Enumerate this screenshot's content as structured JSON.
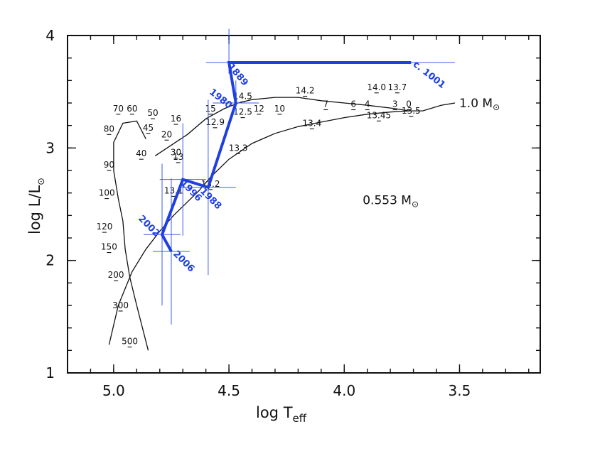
{
  "chart_data": {
    "type": "line",
    "xlabel": "log T",
    "xlabel_sub": "eff",
    "ylabel": "log L/L",
    "ylabel_sub": "⊙",
    "xlim": [
      5.2,
      3.15
    ],
    "ylim": [
      1.0,
      4.0
    ],
    "x_reversed": true,
    "x_ticks": [
      5.0,
      4.5,
      4.0,
      3.5
    ],
    "x_tick_labels": [
      "5.0",
      "4.5",
      "4.0",
      "3.5"
    ],
    "y_ticks": [
      1,
      2,
      3,
      4
    ],
    "y_tick_labels": [
      "1",
      "2",
      "3",
      "4"
    ],
    "grid": false,
    "series": [
      {
        "name": "1.0 M⊙",
        "name_sub": "⊙",
        "name_main": "1.0 M",
        "kind": "evolutionary-track",
        "points": [
          [
            3.52,
            3.4
          ],
          [
            3.58,
            3.38
          ],
          [
            3.66,
            3.33
          ],
          [
            3.72,
            3.33
          ],
          [
            3.78,
            3.35
          ],
          [
            3.9,
            3.38
          ],
          [
            4.0,
            3.4
          ],
          [
            4.1,
            3.42
          ],
          [
            4.2,
            3.45
          ],
          [
            4.3,
            3.45
          ],
          [
            4.4,
            3.43
          ],
          [
            4.46,
            3.4
          ],
          [
            4.52,
            3.35
          ],
          [
            4.6,
            3.26
          ],
          [
            4.68,
            3.12
          ],
          [
            4.82,
            2.93
          ]
        ],
        "age_labels": [
          {
            "text": "0",
            "x": 3.72,
            "y": 3.34
          },
          {
            "text": "13.7",
            "x": 3.77,
            "y": 3.49
          },
          {
            "text": "14.0",
            "x": 3.86,
            "y": 3.49
          },
          {
            "text": "14.2",
            "x": 4.17,
            "y": 3.46
          },
          {
            "text": "14.5",
            "x": 4.44,
            "y": 3.41
          },
          {
            "text": "15",
            "x": 4.58,
            "y": 3.3
          },
          {
            "text": "16",
            "x": 4.73,
            "y": 3.21
          },
          {
            "text": "20",
            "x": 4.77,
            "y": 3.07
          },
          {
            "text": "30",
            "x": 4.73,
            "y": 2.91
          }
        ]
      },
      {
        "name": "0.553 M⊙",
        "name_main": "0.553 M",
        "name_sub": "⊙",
        "kind": "evolutionary-track",
        "points": [
          [
            3.72,
            3.33
          ],
          [
            3.8,
            3.32
          ],
          [
            3.9,
            3.3
          ],
          [
            4.0,
            3.27
          ],
          [
            4.1,
            3.23
          ],
          [
            4.2,
            3.19
          ],
          [
            4.3,
            3.13
          ],
          [
            4.4,
            3.04
          ],
          [
            4.5,
            2.9
          ],
          [
            4.58,
            2.74
          ],
          [
            4.63,
            2.62
          ],
          [
            4.68,
            2.52
          ],
          [
            4.74,
            2.4
          ],
          [
            4.8,
            2.26
          ],
          [
            4.86,
            2.1
          ],
          [
            4.92,
            1.9
          ],
          [
            4.98,
            1.6
          ],
          [
            5.02,
            1.25
          ]
        ],
        "age_labels": [
          {
            "text": "3",
            "x": 3.78,
            "y": 3.34
          },
          {
            "text": "4",
            "x": 3.9,
            "y": 3.34
          },
          {
            "text": "6",
            "x": 3.96,
            "y": 3.34
          },
          {
            "text": "7",
            "x": 4.08,
            "y": 3.34
          },
          {
            "text": "10",
            "x": 4.28,
            "y": 3.3
          },
          {
            "text": "12",
            "x": 4.37,
            "y": 3.3
          },
          {
            "text": "12.5",
            "x": 4.44,
            "y": 3.27
          },
          {
            "text": "12.9",
            "x": 4.56,
            "y": 3.18
          },
          {
            "text": "13",
            "x": 4.72,
            "y": 2.87
          },
          {
            "text": "13.1",
            "x": 4.74,
            "y": 2.57
          },
          {
            "text": "13.2",
            "x": 4.58,
            "y": 2.63
          },
          {
            "text": "13.3",
            "x": 4.46,
            "y": 2.95
          },
          {
            "text": "13.4",
            "x": 4.14,
            "y": 3.17
          },
          {
            "text": "13.45",
            "x": 3.85,
            "y": 3.24
          },
          {
            "text": "13.5",
            "x": 3.71,
            "y": 3.28
          }
        ]
      },
      {
        "name": "",
        "kind": "white-dwarf-cooling",
        "points": [
          [
            4.86,
            3.08
          ],
          [
            4.9,
            3.24
          ],
          [
            4.96,
            3.22
          ],
          [
            5.0,
            3.05
          ],
          [
            5.0,
            2.8
          ],
          [
            4.98,
            2.55
          ],
          [
            4.96,
            2.35
          ],
          [
            4.95,
            2.1
          ],
          [
            4.93,
            1.85
          ],
          [
            4.9,
            1.6
          ],
          [
            4.85,
            1.2
          ]
        ],
        "age_labels": [
          {
            "text": "40",
            "x": 4.88,
            "y": 2.9
          },
          {
            "text": "45",
            "x": 4.85,
            "y": 3.13
          },
          {
            "text": "50",
            "x": 4.83,
            "y": 3.26
          },
          {
            "text": "60",
            "x": 4.92,
            "y": 3.3
          },
          {
            "text": "70",
            "x": 4.98,
            "y": 3.3
          },
          {
            "text": "80",
            "x": 5.02,
            "y": 3.12
          },
          {
            "text": "90",
            "x": 5.02,
            "y": 2.8
          },
          {
            "text": "100",
            "x": 5.03,
            "y": 2.55
          },
          {
            "text": "120",
            "x": 5.04,
            "y": 2.25
          },
          {
            "text": "150",
            "x": 5.02,
            "y": 2.07
          },
          {
            "text": "200",
            "x": 4.99,
            "y": 1.82
          },
          {
            "text": "300",
            "x": 4.97,
            "y": 1.55
          },
          {
            "text": "500",
            "x": 4.93,
            "y": 1.23
          }
        ]
      }
    ],
    "observed_path": {
      "name": "",
      "color": "#1f3fe0",
      "points": [
        {
          "label": "c. 1001",
          "x": 3.71,
          "y": 3.76,
          "xerr": 0.19,
          "yerr_low": 0.0,
          "yerr_high": 0.0
        },
        {
          "label": "1889",
          "x": 4.5,
          "y": 3.76,
          "xerr": 0.1,
          "yerr_low": 0.1,
          "yerr_high": 0.3
        },
        {
          "label": "1980",
          "x": 4.47,
          "y": 3.4,
          "xerr": 0.1,
          "yerr_low": 0.1,
          "yerr_high": 0.2
        },
        {
          "label": "1988",
          "x": 4.59,
          "y": 2.65,
          "xerr": 0.12,
          "yerr_low": 0.78,
          "yerr_high": 0.78
        },
        {
          "label": "1996",
          "x": 4.7,
          "y": 2.72,
          "xerr": 0.1,
          "yerr_low": 0.5,
          "yerr_high": 0.5
        },
        {
          "label": "2002",
          "x": 4.79,
          "y": 2.23,
          "xerr": 0.08,
          "yerr_low": 0.63,
          "yerr_high": 0.63
        },
        {
          "label": "2006",
          "x": 4.75,
          "y": 2.08,
          "xerr": 0.08,
          "yerr_low": 0.65,
          "yerr_high": 0.65
        }
      ]
    }
  }
}
